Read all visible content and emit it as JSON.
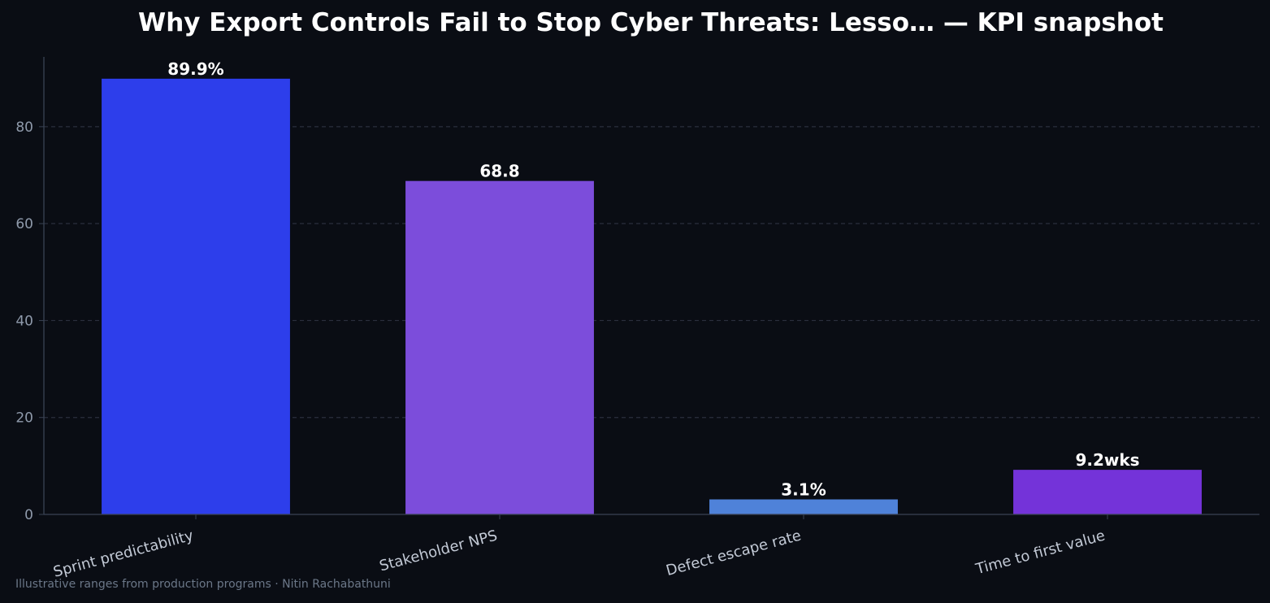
{
  "chart_data": {
    "type": "bar",
    "title": "Why Export Controls Fail to Stop Cyber Threats: Lesso… — KPI snapshot",
    "categories": [
      "Sprint predictability",
      "Stakeholder NPS",
      "Defect escape rate",
      "Time to first value"
    ],
    "values": [
      89.9,
      68.8,
      3.1,
      9.2
    ],
    "value_labels": [
      "89.9%",
      "68.8",
      "3.1%",
      "9.2wks"
    ],
    "bar_colors": [
      "#2d3eeb",
      "#7c4ddb",
      "#4f82d9",
      "#7433d9"
    ],
    "xlabel": "",
    "ylabel": "",
    "ylim": [
      0,
      94.4
    ],
    "yticks": [
      0,
      20,
      40,
      60,
      80
    ],
    "grid": true,
    "legend": "none"
  },
  "footer": {
    "note": "Illustrative ranges from production programs · Nitin Rachabathuni"
  },
  "colors": {
    "background": "#0a0d14",
    "axis": "#3a4354",
    "grid": "#2a2f3d",
    "tick_text": "#8f9aab",
    "category_text": "#c3cad6",
    "title_text": "#ffffff",
    "value_label_text": "#ffffff"
  }
}
